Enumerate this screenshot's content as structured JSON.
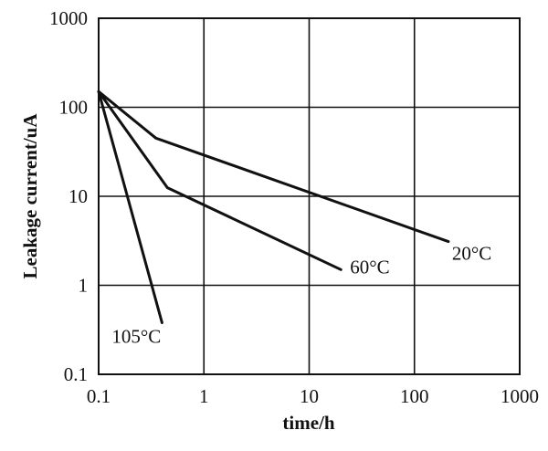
{
  "chart_data": {
    "type": "line",
    "title": "",
    "xlabel": "time/h",
    "ylabel": "Leakage current/uA",
    "x_scale": "log",
    "y_scale": "log",
    "xlim": [
      0.1,
      1000
    ],
    "ylim": [
      0.1,
      1000
    ],
    "grid": true,
    "x_ticks": [
      "0.1",
      "1",
      "10",
      "100",
      "1000"
    ],
    "y_ticks": [
      "0.1",
      "1",
      "10",
      "100",
      "1000"
    ],
    "series": [
      {
        "name": "20°C",
        "x": [
          0.1,
          0.35,
          210
        ],
        "y": [
          150,
          45,
          3.1
        ]
      },
      {
        "name": "60°C",
        "x": [
          0.1,
          0.45,
          20
        ],
        "y": [
          150,
          12.5,
          1.5
        ]
      },
      {
        "name": "105°C",
        "x": [
          0.1,
          0.4
        ],
        "y": [
          150,
          0.38
        ]
      }
    ]
  }
}
